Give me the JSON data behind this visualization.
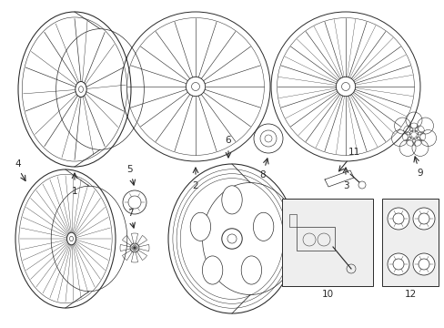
{
  "background": "#ffffff",
  "line_color": "#2a2a2a",
  "line_width": 0.7,
  "fig_w": 4.89,
  "fig_h": 3.6,
  "dpi": 100
}
